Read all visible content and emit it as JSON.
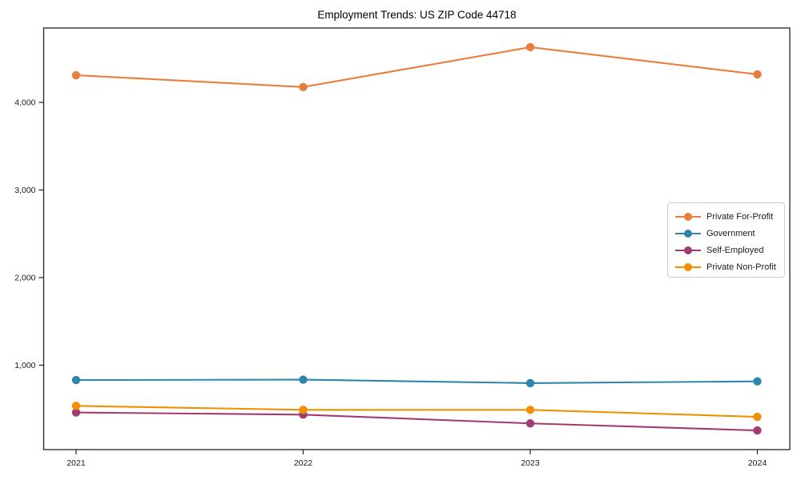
{
  "chart_data": {
    "type": "line",
    "title": "Employment Trends: US ZIP Code 44718",
    "xlabel": "",
    "ylabel": "",
    "x": [
      "2021",
      "2022",
      "2023",
      "2024"
    ],
    "series": [
      {
        "name": "Private For-Profit",
        "color": "#E87D3E",
        "values": [
          4310,
          4175,
          4630,
          4320
        ]
      },
      {
        "name": "Government",
        "color": "#2E86AB",
        "values": [
          830,
          835,
          795,
          815
        ]
      },
      {
        "name": "Self-Employed",
        "color": "#A23B72",
        "values": [
          460,
          435,
          335,
          255
        ]
      },
      {
        "name": "Private Non-Profit",
        "color": "#F18F01",
        "values": [
          535,
          490,
          490,
          410
        ]
      }
    ],
    "ylim": [
      36,
      4849
    ],
    "yticks": [
      1000,
      2000,
      3000,
      4000
    ],
    "ytick_labels": [
      "1,000",
      "2,000",
      "3,000",
      "4,000"
    ],
    "grid": false,
    "legend_position": "center-right",
    "marker": "circle"
  }
}
